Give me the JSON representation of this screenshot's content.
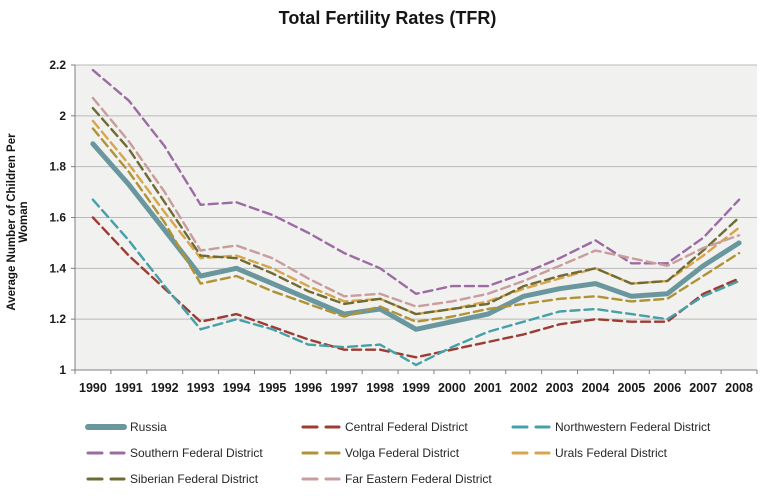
{
  "title": "Total Fertility Rates (TFR)",
  "y_axis_title": "Average Number of Children Per Woman",
  "colors": {
    "plot_background": "#f1f1ef",
    "gridline": "#b9b9b9",
    "axis_line": "#7f7f7f",
    "tick_label": "#1a1a1a"
  },
  "chart_data": {
    "type": "line",
    "title": "Total Fertility Rates (TFR)",
    "xlabel": "",
    "ylabel": "Average Number of Children Per Woman",
    "x": [
      1990,
      1991,
      1992,
      1993,
      1994,
      1995,
      1996,
      1997,
      1998,
      1999,
      2000,
      2001,
      2002,
      2003,
      2004,
      2005,
      2006,
      2007,
      2008
    ],
    "ylim": [
      1.0,
      2.2
    ],
    "ytick_step": 0.2,
    "ytick_labels": [
      "1",
      "1.2",
      "1.4",
      "1.6",
      "1.8",
      "2",
      "2.2"
    ],
    "grid": true,
    "legend_position": "bottom",
    "series": [
      {
        "name": "Russia",
        "color": "#6a979d",
        "style": "solid",
        "width": 5,
        "values": [
          1.89,
          1.73,
          1.55,
          1.37,
          1.4,
          1.34,
          1.28,
          1.22,
          1.24,
          1.16,
          1.19,
          1.22,
          1.29,
          1.32,
          1.34,
          1.29,
          1.3,
          1.41,
          1.5
        ]
      },
      {
        "name": "Central Federal District",
        "color": "#9e3b33",
        "style": "dashed",
        "width": 2.4,
        "values": [
          1.6,
          1.45,
          1.32,
          1.19,
          1.22,
          1.17,
          1.12,
          1.08,
          1.08,
          1.05,
          1.08,
          1.11,
          1.14,
          1.18,
          1.2,
          1.19,
          1.19,
          1.3,
          1.36
        ]
      },
      {
        "name": "Northwestern Federal District",
        "color": "#45a0a8",
        "style": "dashed",
        "width": 2.4,
        "values": [
          1.67,
          1.51,
          1.33,
          1.16,
          1.2,
          1.16,
          1.1,
          1.09,
          1.1,
          1.02,
          1.09,
          1.15,
          1.19,
          1.23,
          1.24,
          1.22,
          1.2,
          1.29,
          1.35
        ]
      },
      {
        "name": "Southern Federal District",
        "color": "#9c6ba3",
        "style": "dashed",
        "width": 2.4,
        "values": [
          2.18,
          2.06,
          1.88,
          1.65,
          1.66,
          1.61,
          1.54,
          1.46,
          1.4,
          1.3,
          1.33,
          1.33,
          1.38,
          1.44,
          1.51,
          1.42,
          1.42,
          1.52,
          1.67
        ]
      },
      {
        "name": "Volga Federal District",
        "color": "#b09336",
        "style": "dashed",
        "width": 2.4,
        "values": [
          1.95,
          1.78,
          1.58,
          1.34,
          1.37,
          1.31,
          1.26,
          1.21,
          1.25,
          1.19,
          1.21,
          1.24,
          1.26,
          1.28,
          1.29,
          1.27,
          1.28,
          1.37,
          1.46
        ]
      },
      {
        "name": "Urals Federal District",
        "color": "#d8a44c",
        "style": "dashed",
        "width": 2.4,
        "values": [
          1.98,
          1.81,
          1.62,
          1.44,
          1.45,
          1.4,
          1.33,
          1.27,
          1.28,
          1.22,
          1.24,
          1.27,
          1.32,
          1.36,
          1.4,
          1.34,
          1.35,
          1.45,
          1.56
        ]
      },
      {
        "name": "Siberian Federal District",
        "color": "#6e6b33",
        "style": "dashed",
        "width": 2.4,
        "values": [
          2.03,
          1.87,
          1.66,
          1.45,
          1.44,
          1.38,
          1.31,
          1.26,
          1.28,
          1.22,
          1.24,
          1.26,
          1.33,
          1.37,
          1.4,
          1.34,
          1.35,
          1.47,
          1.6
        ]
      },
      {
        "name": "Far Eastern Federal District",
        "color": "#c99c9d",
        "style": "dashed",
        "width": 2.4,
        "values": [
          2.07,
          1.9,
          1.7,
          1.47,
          1.49,
          1.44,
          1.36,
          1.29,
          1.3,
          1.25,
          1.27,
          1.3,
          1.35,
          1.41,
          1.47,
          1.44,
          1.41,
          1.48,
          1.53
        ]
      }
    ],
    "legend_rows": [
      [
        "Russia",
        "Central Federal District",
        "Northwestern Federal District"
      ],
      [
        "Southern Federal District",
        "Volga Federal District",
        "Urals Federal District"
      ],
      [
        "Siberian Federal District",
        "Far Eastern Federal District"
      ]
    ]
  }
}
